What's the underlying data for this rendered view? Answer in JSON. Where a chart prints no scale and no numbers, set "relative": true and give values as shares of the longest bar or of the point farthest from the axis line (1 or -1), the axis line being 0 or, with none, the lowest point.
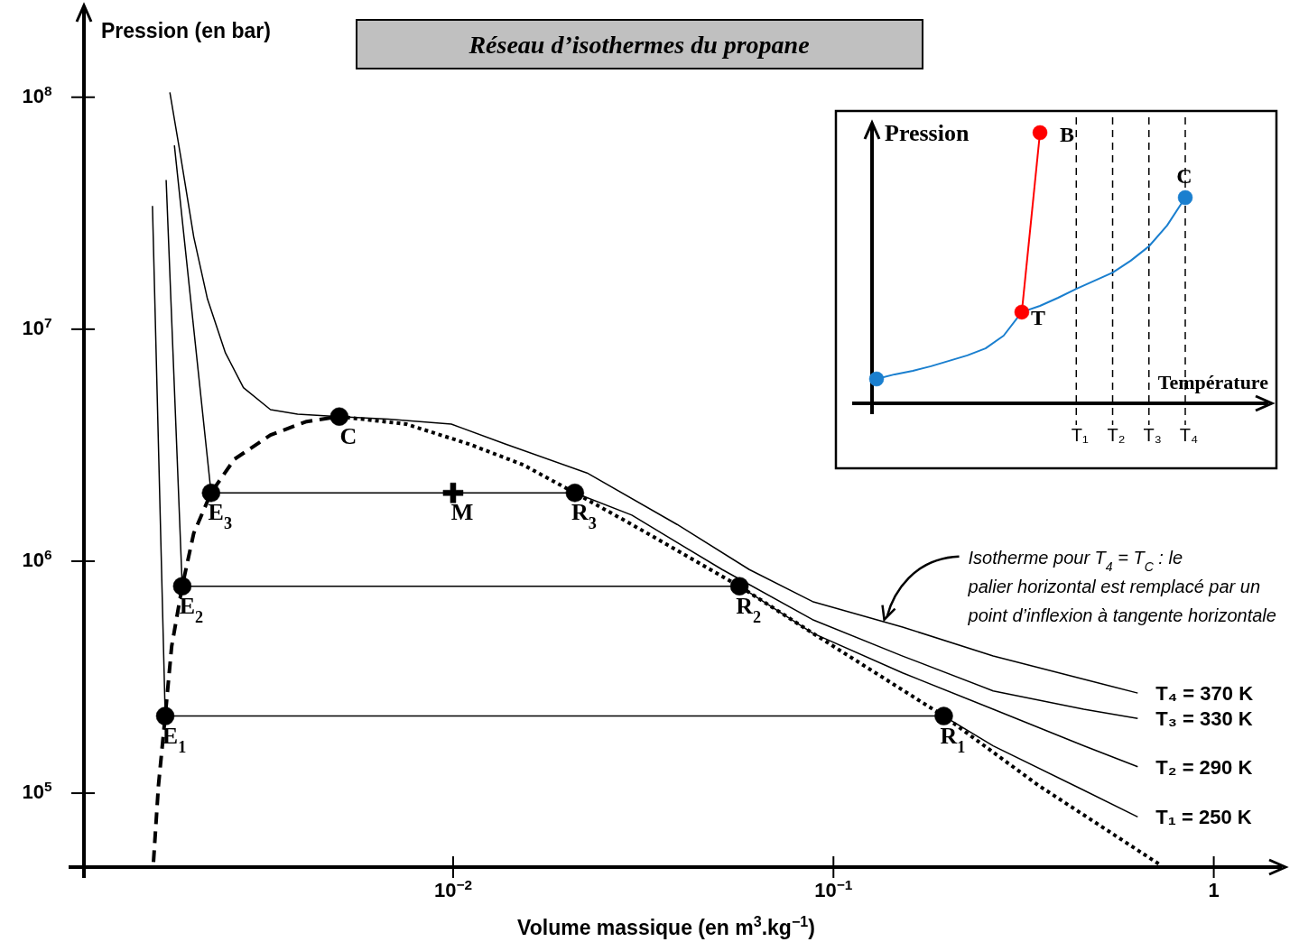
{
  "chart_data": [
    {
      "type": "line",
      "title": "Réseau d’isothermes du propane",
      "xlabel": "Volume massique (en m$^{3}$.kg$^{−1}$)",
      "ylabel": "Pression (en bar)",
      "log": "xy",
      "xlim": [
        0.00107,
        1.51
      ],
      "ylim": [
        48000,
        240000000
      ],
      "xticks": [
        {
          "value": 0.01,
          "label": "10$^{−2}$"
        },
        {
          "value": 0.1,
          "label": "10$^{−1}$"
        },
        1
      ],
      "yticks": [
        {
          "value": 100000,
          "label": "10$^{5}$"
        },
        {
          "value": 1000000,
          "label": "10$^{6}$"
        },
        {
          "value": 10000000,
          "label": "10$^{7}$"
        },
        {
          "value": 100000000,
          "label": "10$^{8}$"
        }
      ],
      "series": [
        {
          "name": "T₄ = 370 K",
          "color": "#000000",
          "x": [
            0.0018,
            0.00192,
            0.00208,
            0.00226,
            0.00252,
            0.00281,
            0.00331,
            0.0039,
            0.00502,
            0.00675,
            0.00989,
            0.0137,
            0.0225,
            0.0388,
            0.0601,
            0.0881,
            0.152,
            0.263,
            0.455,
            0.631
          ],
          "values": [
            105000000,
            56000000,
            25000000,
            13500000,
            7900000,
            5600000,
            4500000,
            4300000,
            4200000,
            4100000,
            3900000,
            3200000,
            2400000,
            1440000,
            920000,
            670000,
            520000,
            390000,
            310000,
            270000
          ]
        },
        {
          "name": "T₃ = 330 K",
          "color": "#000000",
          "x": [
            0.00185,
            0.00231,
            0.0209,
            0.0295,
            0.051,
            0.0881,
            0.152,
            0.263,
            0.455,
            0.631
          ],
          "values": [
            62000000,
            1970000,
            1970000,
            1580000,
            920000,
            560000,
            390000,
            276000,
            230000,
            210000
          ]
        },
        {
          "name": "T₂ = 290 K",
          "color": "#000000",
          "x": [
            0.00176,
            0.00194,
            0.0566,
            0.0881,
            0.152,
            0.263,
            0.455,
            0.631
          ],
          "values": [
            44000000,
            780000,
            780000,
            490000,
            330000,
            230000,
            160000,
            130000
          ]
        },
        {
          "name": "T₁ = 250 K",
          "color": "#000000",
          "x": [
            0.00162,
            0.00175,
            0.195,
            0.263,
            0.455,
            0.631
          ],
          "values": [
            34000000,
            215000,
            215000,
            160000,
            103000,
            79000
          ]
        },
        {
          "color": "#000000",
          "line_style": "dashed",
          "x": [
            0.00163,
            0.00168,
            0.00175,
            0.00182,
            0.00194,
            0.00208,
            0.00231,
            0.00266,
            0.00331,
            0.00412,
            0.00502
          ],
          "values": [
            50500,
            108000,
            215000,
            430000,
            780000,
            1320000,
            1970000,
            2750000,
            3500000,
            4000000,
            4200000
          ]
        },
        {
          "color": "#000000",
          "line_style": "dotted",
          "x": [
            0.00502,
            0.00752,
            0.011,
            0.0153,
            0.0209,
            0.0295,
            0.0566,
            0.0881,
            0.195,
            0.346,
            0.724
          ],
          "values": [
            4200000,
            3900000,
            3200000,
            2600000,
            1970000,
            1440000,
            780000,
            490000,
            215000,
            108000,
            49000
          ]
        },
        {
          "type": "scatter",
          "marker": "circle",
          "color": "#000000",
          "x": [
            0.00175,
            0.00194,
            0.00231,
            0.195,
            0.0566,
            0.0209,
            0.00502
          ],
          "values": [
            215000,
            780000,
            1970000,
            215000,
            780000,
            1970000,
            4200000
          ]
        },
        {
          "type": "scatter",
          "marker": "cross",
          "color": "#000000",
          "x": [
            0.01
          ],
          "values": [
            1970000
          ]
        }
      ],
      "annotations": [
        {
          "text": "E$_{1}$",
          "x": 0.00175,
          "y": 215000
        },
        {
          "text": "E$_{2}$",
          "x": 0.00194,
          "y": 780000
        },
        {
          "text": "E$_{3}$",
          "x": 0.00231,
          "y": 1970000
        },
        {
          "text": "R$_{1}$",
          "x": 0.195,
          "y": 215000
        },
        {
          "text": "R$_{2}$",
          "x": 0.0566,
          "y": 780000
        },
        {
          "text": "R$_{3}$",
          "x": 0.0209,
          "y": 1970000
        },
        {
          "text": "C",
          "x": 0.00502,
          "y": 4200000
        },
        {
          "text": "M",
          "x": 0.01,
          "y": 1970000
        },
        {
          "text": "Isotherme pour T$_{4}$ = T$_{C}$ : le palier horizontal est remplacé par un point d’inflexion à tangente horizontale",
          "x": 0.136,
          "y": 560000
        }
      ]
    },
    {
      "type": "line",
      "relative": true,
      "xlabel": "Température",
      "ylabel": "Pression",
      "grid": "x",
      "categories": [
        null,
        null,
        null,
        null,
        null,
        null,
        null,
        null,
        null,
        null,
        null,
        "T₁",
        null,
        "T₂",
        null,
        "T₃",
        null,
        "T₄"
      ],
      "series": [
        {
          "color": "#1a7fcf",
          "values": [
            0.09,
            0.107,
            0.12,
            0.137,
            0.157,
            0.177,
            0.203,
            0.25,
            0.337,
            0.36,
            0.39,
            0.423,
            0.453,
            0.483,
            0.527,
            0.58,
            0.657,
            0.76
          ]
        },
        {
          "color": "#ff0000",
          "values": [
            null,
            null,
            null,
            null,
            null,
            null,
            null,
            null,
            0.337,
            1,
            null,
            null,
            null,
            null,
            null,
            null,
            null,
            null
          ]
        },
        {
          "type": "scatter",
          "marker": "circle",
          "color": "#1a7fcf",
          "values": [
            0.09,
            null,
            null,
            null,
            null,
            null,
            null,
            null,
            null,
            null,
            null,
            null,
            null,
            null,
            null,
            null,
            null,
            0.76
          ]
        },
        {
          "type": "scatter",
          "marker": "circle",
          "color": "#ff0000",
          "values": [
            null,
            null,
            null,
            null,
            null,
            null,
            null,
            null,
            0.337,
            1,
            null,
            null,
            null,
            null,
            null,
            null,
            null,
            null
          ]
        }
      ],
      "annotations": [
        {
          "text": "T",
          "y": 0.337
        },
        "B",
        "C"
      ]
    }
  ]
}
